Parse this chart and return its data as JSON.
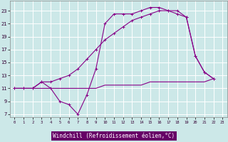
{
  "background_color": "#cce8e8",
  "grid_color": "#ffffff",
  "line_color": "#880088",
  "xlabel": "Windchill (Refroidissement éolien,°C)",
  "xlabel_bg": "#660066",
  "xlabel_fg": "#ffffff",
  "xlim": [
    -0.5,
    23.5
  ],
  "ylim": [
    6.5,
    24.5
  ],
  "xticks": [
    0,
    1,
    2,
    3,
    4,
    5,
    6,
    7,
    8,
    9,
    10,
    11,
    12,
    13,
    14,
    15,
    16,
    17,
    18,
    19,
    20,
    21,
    22,
    23
  ],
  "yticks": [
    7,
    9,
    11,
    13,
    15,
    17,
    19,
    21,
    23
  ],
  "line1_x": [
    0,
    1,
    2,
    3,
    4,
    5,
    6,
    7,
    8,
    9,
    10,
    11,
    12,
    13,
    14,
    15,
    16,
    17,
    18,
    19,
    20,
    21,
    22
  ],
  "line1_y": [
    11,
    11,
    11,
    12,
    11,
    9,
    8.5,
    7,
    10,
    14,
    21,
    22.5,
    22.5,
    22.5,
    23,
    23.5,
    23.5,
    23,
    22.5,
    22,
    16,
    13.5,
    12.5
  ],
  "line2_x": [
    0,
    1,
    2,
    3,
    4,
    5,
    6,
    7,
    8,
    9,
    10,
    11,
    12,
    13,
    14,
    15,
    16,
    17,
    18,
    19,
    20,
    21,
    22
  ],
  "line2_y": [
    11,
    11,
    11,
    12,
    12,
    12.5,
    13,
    14,
    15.5,
    17,
    18.5,
    19.5,
    20.5,
    21.5,
    22,
    22.5,
    23,
    23,
    23,
    22,
    16,
    13.5,
    12.5
  ],
  "line3_x": [
    0,
    1,
    2,
    3,
    4,
    5,
    6,
    7,
    8,
    9,
    10,
    11,
    12,
    13,
    14,
    15,
    16,
    17,
    18,
    19,
    20,
    21,
    22
  ],
  "line3_y": [
    11,
    11,
    11,
    11,
    11,
    11,
    11,
    11,
    11,
    11,
    11.5,
    11.5,
    11.5,
    11.5,
    11.5,
    12,
    12,
    12,
    12,
    12,
    12,
    12,
    12.5
  ],
  "marker_size": 2.5,
  "linewidth": 0.8
}
